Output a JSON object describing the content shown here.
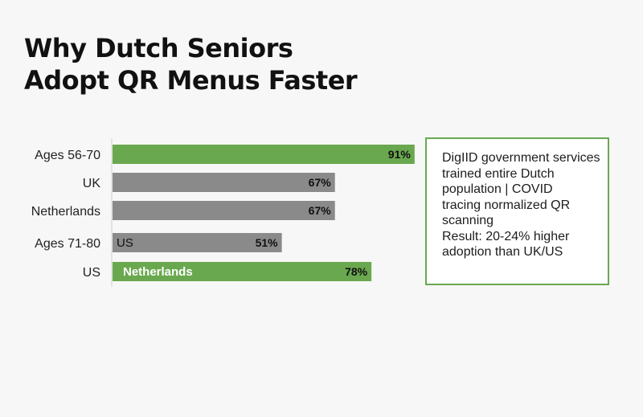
{
  "title_lines": [
    "Why Dutch Seniors",
    "Adopt QR Menus Faster"
  ],
  "note_lines": [
    "DigIID government services",
    "trained entire Dutch",
    "population | COVID",
    "tracing normalized QR",
    "scanning",
    "Result: 20-24% higher",
    "adoption than UK/US"
  ],
  "colors": {
    "green": "#6aa84f",
    "gray": "#8a8a8a",
    "axis": "#cccccc"
  },
  "chart_data": {
    "type": "bar",
    "orientation": "horizontal",
    "categories": [
      "Ages 56-70",
      "UK",
      "Netherlands",
      "Ages 71-80",
      "US"
    ],
    "values": [
      91,
      67,
      67,
      51,
      78
    ],
    "data_labels": [
      "91%",
      "67%",
      "67%",
      "51%",
      "78%"
    ],
    "inner_labels": [
      "",
      "",
      "",
      "US",
      "Netherlands"
    ],
    "bar_colors": [
      "green",
      "gray",
      "gray",
      "gray",
      "green"
    ],
    "xlim": [
      0,
      100
    ],
    "title": "",
    "xlabel": "",
    "ylabel": "",
    "grid": false,
    "legend": "none"
  }
}
